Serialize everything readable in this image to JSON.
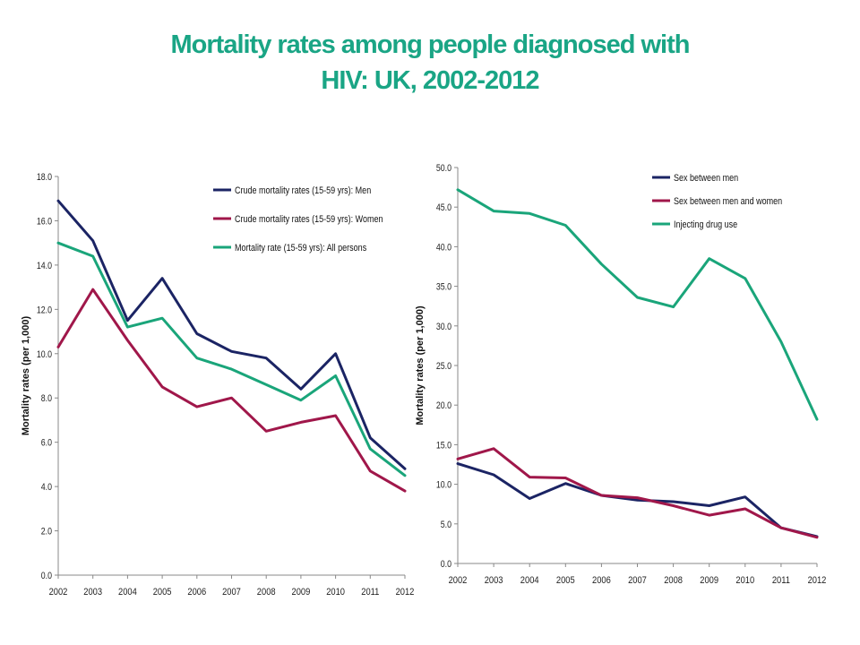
{
  "slide": {
    "title_line1": "Mortality rates among people diagnosed with",
    "title_line2": "HIV: UK, 2002-2012"
  },
  "chart_data": [
    {
      "type": "line",
      "x": [
        "2002",
        "2003",
        "2004",
        "2005",
        "2006",
        "2007",
        "2008",
        "2009",
        "2010",
        "2011",
        "2012"
      ],
      "ylabel": "Mortality rates (per 1,000)",
      "ylim": [
        0,
        18
      ],
      "ytick_step": 2,
      "ytick_labels": [
        "0.0",
        "2.0",
        "4.0",
        "6.0",
        "8.0",
        "10.0",
        "12.0",
        "14.0",
        "16.0",
        "18.0"
      ],
      "grid": false,
      "legend_position": "top-right",
      "series": [
        {
          "name": "Crude mortality rates (15-59 yrs): Men",
          "color": "#1b2464",
          "values": [
            16.9,
            15.1,
            11.5,
            13.4,
            10.9,
            10.1,
            9.8,
            8.4,
            10.0,
            6.2,
            4.8
          ]
        },
        {
          "name": "Crude mortality rates (15-59 yrs): Women",
          "color": "#a0174a",
          "values": [
            10.3,
            12.9,
            10.6,
            8.5,
            7.6,
            8.0,
            6.5,
            6.9,
            7.2,
            4.7,
            3.8
          ]
        },
        {
          "name": "Mortality rate (15-59 yrs): All persons",
          "color": "#1aa57a",
          "values": [
            15.0,
            14.4,
            11.2,
            11.6,
            9.8,
            9.3,
            8.6,
            7.9,
            9.0,
            5.7,
            4.5
          ]
        }
      ]
    },
    {
      "type": "line",
      "x": [
        "2002",
        "2003",
        "2004",
        "2005",
        "2006",
        "2007",
        "2008",
        "2009",
        "2010",
        "2011",
        "2012"
      ],
      "ylabel": "Mortality rates (per 1,000)",
      "ylim": [
        0,
        50
      ],
      "ytick_step": 5,
      "ytick_labels": [
        "0.0",
        "5.0",
        "10.0",
        "15.0",
        "20.0",
        "25.0",
        "30.0",
        "35.0",
        "40.0",
        "45.0",
        "50.0"
      ],
      "grid": false,
      "legend_position": "top-right",
      "series": [
        {
          "name": "Sex between men",
          "color": "#1b2464",
          "values": [
            12.6,
            11.2,
            8.2,
            10.1,
            8.6,
            8.0,
            7.8,
            7.3,
            8.4,
            4.5,
            3.4
          ]
        },
        {
          "name": "Sex between men and women",
          "color": "#a0174a",
          "values": [
            13.2,
            14.5,
            10.9,
            10.8,
            8.6,
            8.3,
            7.3,
            6.1,
            6.9,
            4.5,
            3.3
          ]
        },
        {
          "name": "Injecting drug use",
          "color": "#1aa57a",
          "values": [
            47.2,
            44.5,
            44.2,
            42.7,
            37.8,
            33.6,
            32.4,
            38.5,
            36.0,
            28.0,
            18.2
          ]
        }
      ]
    }
  ]
}
